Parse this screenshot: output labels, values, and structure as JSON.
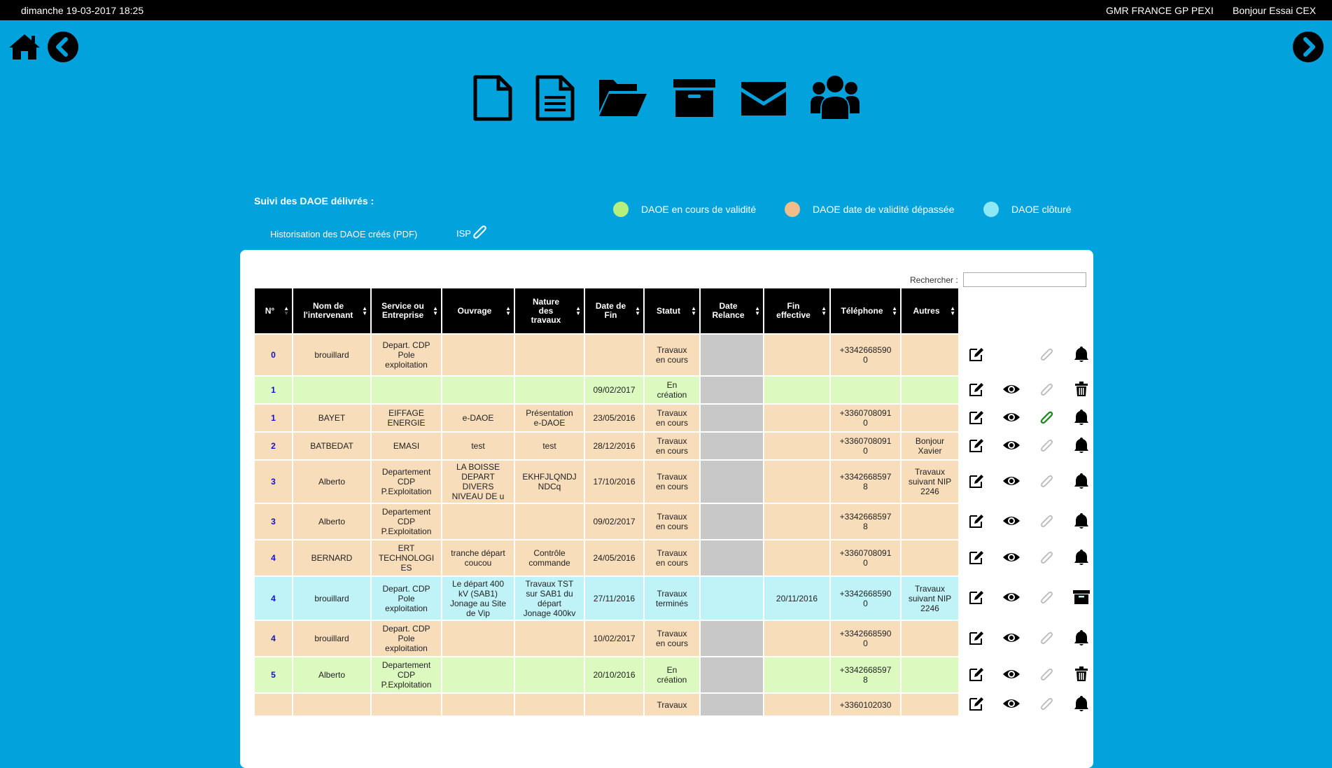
{
  "topbar": {
    "date": "dimanche 19-03-2017 18:25",
    "org": "GMR FRANCE  GP PEXI",
    "greeting": "Bonjour Essai CEX"
  },
  "nav": {
    "home": "home-icon",
    "back": "chevron-left-icon",
    "forward": "chevron-right-icon"
  },
  "toolbar": [
    "new-file-icon",
    "file-text-icon",
    "folder-open-icon",
    "archive-icon",
    "envelope-icon",
    "users-icon"
  ],
  "section_title": "Suivi des DAOE délivrés :",
  "legend": [
    {
      "label": "DAOE en cours de validité",
      "color": "#b5f07f"
    },
    {
      "label": "DAOE date de validité dépassée",
      "color": "#f0bd8b"
    },
    {
      "label": "DAOE clôturé",
      "color": "#8de9f5"
    }
  ],
  "links": {
    "historisation": "Historisation des DAOE créés (PDF)",
    "isp": "ISP"
  },
  "search": {
    "label": "Rechercher :",
    "value": ""
  },
  "colors": {
    "orange": "#f8ddbb",
    "green": "#dcfac0",
    "cyan": "#bff3f8",
    "grey": "#c8c8c8",
    "bg": "#02a2dd"
  },
  "table": {
    "headers": [
      "N°",
      "Nom de\nl'intervenant",
      "Service ou\nEntreprise",
      "Ouvrage",
      "Nature\ndes\ntravaux",
      "Date de\nFin",
      "Statut",
      "Date\nRelance",
      "Fin\neffective",
      "Téléphone",
      "Autres"
    ],
    "rows": [
      {
        "color": "orange",
        "cells": [
          "0",
          "brouillard",
          "Depart. CDP\nPole\nexploitation",
          "",
          "",
          "",
          "Travaux\nen cours",
          "",
          "",
          "+3342668590\n0",
          ""
        ],
        "actions": [
          "edit",
          "",
          "clip-faded",
          "bell"
        ]
      },
      {
        "color": "green",
        "cells": [
          "1",
          "",
          "",
          "",
          "",
          "09/02/2017",
          "En\ncréation",
          "",
          "",
          "",
          ""
        ],
        "actions": [
          "edit",
          "eye",
          "clip-faded",
          "trash"
        ]
      },
      {
        "color": "orange",
        "cells": [
          "1",
          "BAYET",
          "EIFFAGE\nENERGIE",
          "e-DAOE",
          "Présentation\ne-DAOE",
          "23/05/2016",
          "Travaux\nen cours",
          "",
          "",
          "+3360708091\n0",
          ""
        ],
        "actions": [
          "edit",
          "eye",
          "clip-green",
          "bell"
        ]
      },
      {
        "color": "orange",
        "cells": [
          "2",
          "BATBEDAT",
          "EMASI",
          "test",
          "test",
          "28/12/2016",
          "Travaux\nen cours",
          "",
          "",
          "+3360708091\n0",
          "Bonjour\nXavier"
        ],
        "actions": [
          "edit",
          "eye",
          "clip-faded",
          "bell"
        ]
      },
      {
        "color": "orange",
        "cells": [
          "3",
          "Alberto",
          "Departement\nCDP\nP.Exploitation",
          "LA BOISSE\nDEPART\nDIVERS\nNIVEAU DE u",
          "EKHFJLQNDJ\nNDCq",
          "17/10/2016",
          "Travaux\nen cours",
          "",
          "",
          "+3342668597\n8",
          "Travaux\nsuivant NIP\n2246"
        ],
        "actions": [
          "edit",
          "eye",
          "clip-faded",
          "bell"
        ]
      },
      {
        "color": "orange",
        "cells": [
          "3",
          "Alberto",
          "Departement\nCDP\nP.Exploitation",
          "",
          "",
          "09/02/2017",
          "Travaux\nen cours",
          "",
          "",
          "+3342668597\n8",
          ""
        ],
        "actions": [
          "edit",
          "eye",
          "clip-faded",
          "bell"
        ]
      },
      {
        "color": "orange",
        "cells": [
          "4",
          "BERNARD",
          "ERT\nTECHNOLOGI\nES",
          "tranche départ\ncoucou",
          "Contrôle\ncommande",
          "24/05/2016",
          "Travaux\nen cours",
          "",
          "",
          "+3360708091\n0",
          ""
        ],
        "actions": [
          "edit",
          "eye",
          "clip-faded",
          "bell"
        ]
      },
      {
        "color": "cyan",
        "cells": [
          "4",
          "brouillard",
          "Depart. CDP\nPole\nexploitation",
          "Le départ 400\nkV (SAB1)\nJonage au Site\nde Vip",
          "Travaux TST\nsur SAB1 du\ndépart\nJonage 400kv",
          "27/11/2016",
          "Travaux\nterminés",
          "",
          "20/11/2016",
          "+3342668590\n0",
          "Travaux\nsuivant NIP\n2246"
        ],
        "actions": [
          "edit",
          "eye",
          "clip-faded",
          "archive"
        ]
      },
      {
        "color": "orange",
        "cells": [
          "4",
          "brouillard",
          "Depart. CDP\nPole\nexploitation",
          "",
          "",
          "10/02/2017",
          "Travaux\nen cours",
          "",
          "",
          "+3342668590\n0",
          ""
        ],
        "actions": [
          "edit",
          "eye",
          "clip-faded",
          "bell"
        ]
      },
      {
        "color": "green",
        "cells": [
          "5",
          "Alberto",
          "Departement\nCDP\nP.Exploitation",
          "",
          "",
          "20/10/2016",
          "En\ncréation",
          "",
          "",
          "+3342668597\n8",
          ""
        ],
        "actions": [
          "edit",
          "eye",
          "clip-faded",
          "trash"
        ]
      },
      {
        "color": "orange",
        "cells": [
          "",
          "",
          "",
          "",
          "",
          "",
          "Travaux",
          "",
          "",
          "+3360102030",
          ""
        ],
        "actions": [
          "edit",
          "eye",
          "clip-faded",
          "bell"
        ]
      }
    ]
  }
}
